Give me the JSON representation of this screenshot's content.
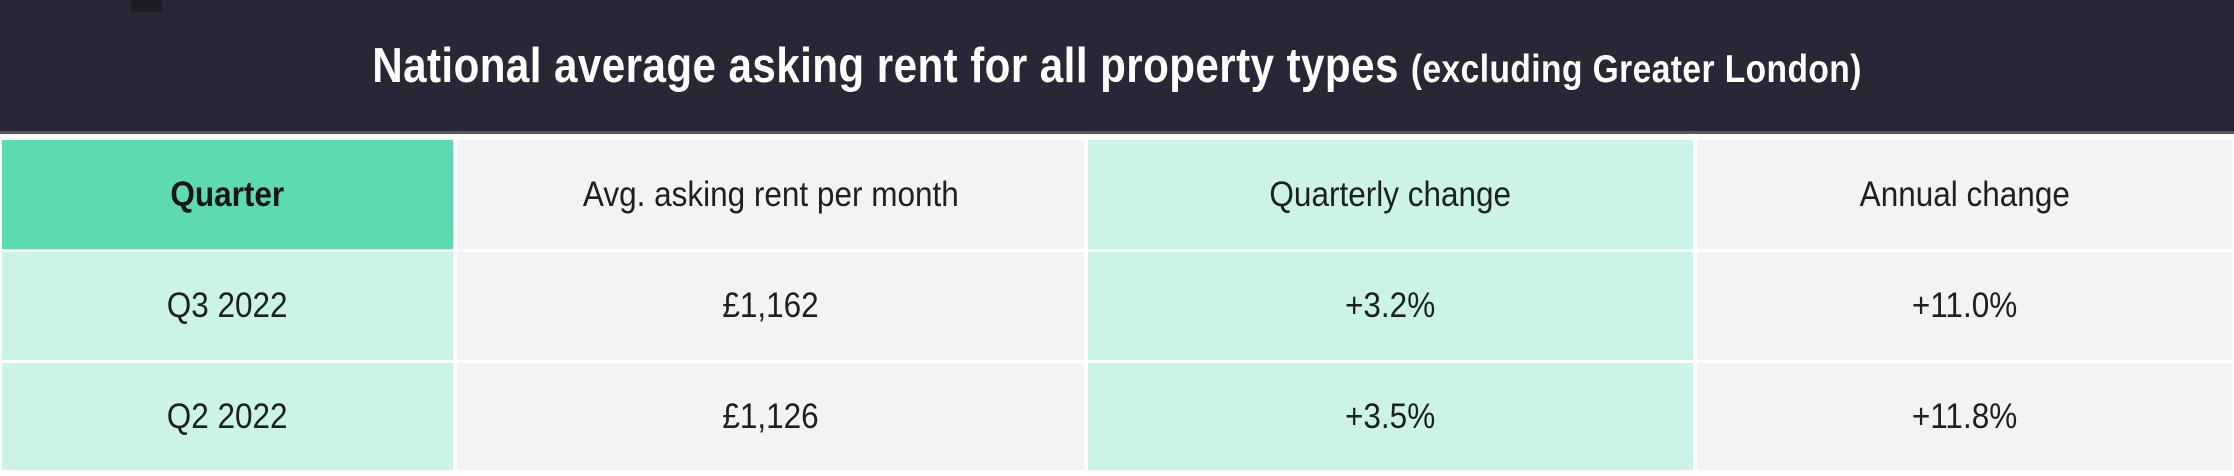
{
  "title": {
    "main": "National average asking rent for all property types",
    "suffix": "(excluding Greater London)"
  },
  "chart_data": {
    "type": "table",
    "title": "National average asking rent for all property types (excluding Greater London)",
    "columns": [
      "Quarter",
      "Avg. asking rent per month",
      "Quarterly change",
      "Annual change"
    ],
    "rows": [
      [
        "Q3 2022",
        "£1,162",
        "+3.2%",
        "+11.0%"
      ],
      [
        "Q2 2022",
        "£1,126",
        "+3.5%",
        "+11.8%"
      ]
    ]
  },
  "colors": {
    "header_bar_bg": "#272735",
    "header_bar_accent_square": "#1c1c29",
    "header_bar_underline": "#56566b",
    "quarter_header_bg": "#5edab0",
    "mint_cell_bg": "#cbf3e8",
    "gray_cell_bg": "#f3f3f3",
    "cell_text": "#1f1f1f",
    "title_text": "#ffffff"
  }
}
